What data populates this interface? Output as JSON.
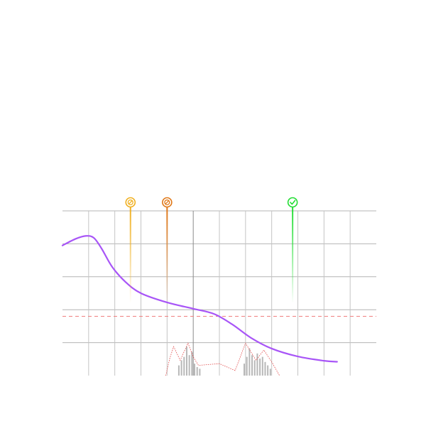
{
  "chart_data": {
    "type": "line",
    "title": "",
    "xlabel": "",
    "ylabel": "",
    "xlim": [
      0,
      12
    ],
    "ylim": [
      0,
      5
    ],
    "grid": true,
    "x_gridlines": [
      1,
      2,
      3,
      4,
      5,
      6,
      7,
      8,
      9,
      10,
      11
    ],
    "y_gridlines": [
      1,
      2,
      3,
      4,
      5
    ],
    "emphasized_x_gridline": 5,
    "curve": {
      "color": "#a855f7",
      "points": [
        [
          0.0,
          3.95
        ],
        [
          0.5,
          4.15
        ],
        [
          0.9,
          4.24
        ],
        [
          1.2,
          4.18
        ],
        [
          1.5,
          3.85
        ],
        [
          1.9,
          3.3
        ],
        [
          2.4,
          2.85
        ],
        [
          3.0,
          2.5
        ],
        [
          4.0,
          2.22
        ],
        [
          5.0,
          2.03
        ],
        [
          5.8,
          1.87
        ],
        [
          6.5,
          1.55
        ],
        [
          7.2,
          1.15
        ],
        [
          8.0,
          0.82
        ],
        [
          9.0,
          0.58
        ],
        [
          10.0,
          0.45
        ],
        [
          10.5,
          0.42
        ]
      ]
    },
    "threshold": {
      "y": 1.8,
      "color": "#f08080"
    },
    "markers": [
      {
        "x": 2.6,
        "status": "warning",
        "color": "#f0b020",
        "icon": "blocked-icon"
      },
      {
        "x": 4.0,
        "status": "error",
        "color": "#e07818",
        "icon": "blocked-icon"
      },
      {
        "x": 8.8,
        "status": "ok",
        "color": "#22dd33",
        "icon": "check-icon"
      }
    ],
    "distribution": {
      "bar_color": "#b8b8b8",
      "line_color": "#e04040",
      "bars": [
        {
          "x": 4.45,
          "value": 0.3
        },
        {
          "x": 4.55,
          "value": 0.45
        },
        {
          "x": 4.65,
          "value": 0.55
        },
        {
          "x": 4.75,
          "value": 0.85
        },
        {
          "x": 4.85,
          "value": 0.6
        },
        {
          "x": 4.95,
          "value": 0.7
        },
        {
          "x": 5.05,
          "value": 0.35
        },
        {
          "x": 5.15,
          "value": 0.25
        },
        {
          "x": 5.25,
          "value": 0.2
        },
        {
          "x": 6.95,
          "value": 0.35
        },
        {
          "x": 7.05,
          "value": 0.55
        },
        {
          "x": 7.15,
          "value": 0.8
        },
        {
          "x": 7.25,
          "value": 0.6
        },
        {
          "x": 7.35,
          "value": 0.45
        },
        {
          "x": 7.45,
          "value": 0.65
        },
        {
          "x": 7.55,
          "value": 0.5
        },
        {
          "x": 7.65,
          "value": 0.55
        },
        {
          "x": 7.75,
          "value": 0.4
        },
        {
          "x": 7.85,
          "value": 0.3
        },
        {
          "x": 7.95,
          "value": 0.2
        }
      ],
      "line": [
        [
          3.95,
          0.0
        ],
        [
          4.1,
          0.5
        ],
        [
          4.25,
          0.85
        ],
        [
          4.5,
          0.45
        ],
        [
          4.8,
          0.95
        ],
        [
          5.0,
          0.55
        ],
        [
          5.2,
          0.3
        ],
        [
          6.0,
          0.35
        ],
        [
          6.6,
          0.15
        ],
        [
          7.0,
          0.95
        ],
        [
          7.4,
          0.45
        ],
        [
          7.7,
          0.75
        ],
        [
          8.0,
          0.4
        ],
        [
          8.3,
          0.0
        ]
      ]
    }
  }
}
